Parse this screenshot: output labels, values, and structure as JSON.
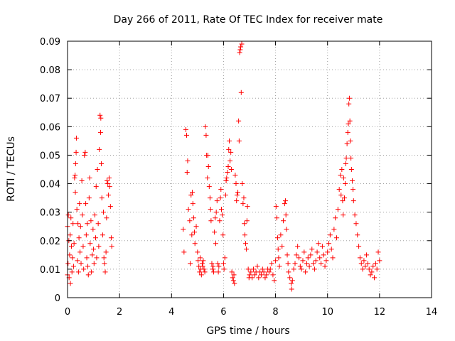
{
  "chart_data": {
    "type": "scatter",
    "title": "Day 266 of 2011, Rate Of TEC Index for receiver mate",
    "xlabel": "GPS time / hours",
    "ylabel": "ROTI / TECUs",
    "xlim": [
      0,
      14
    ],
    "ylim": [
      0,
      0.09
    ],
    "x_ticks": [
      0,
      2,
      4,
      6,
      8,
      10,
      12,
      14
    ],
    "y_ticks": [
      0,
      0.01,
      0.02,
      0.03,
      0.04,
      0.05,
      0.06,
      0.07,
      0.08,
      0.09
    ],
    "x_tick_labels": [
      "0",
      "2",
      "4",
      "6",
      "8",
      "10",
      "12",
      "14"
    ],
    "y_tick_labels": [
      "0",
      "0.01",
      "0.02",
      "0.03",
      "0.04",
      "0.05",
      "0.06",
      "0.07",
      "0.08",
      "0.09"
    ],
    "grid": true,
    "marker": "+",
    "marker_color": "#ff0000",
    "series": [
      {
        "name": "ROTI",
        "points": [
          [
            0.0,
            0.008
          ],
          [
            0.0,
            0.025
          ],
          [
            0.02,
            0.012
          ],
          [
            0.03,
            0.029
          ],
          [
            0.05,
            0.02
          ],
          [
            0.06,
            0.007
          ],
          [
            0.08,
            0.015
          ],
          [
            0.1,
            0.022
          ],
          [
            0.11,
            0.005
          ],
          [
            0.13,
            0.028
          ],
          [
            0.15,
            0.018
          ],
          [
            0.17,
            0.009
          ],
          [
            0.19,
            0.014
          ],
          [
            0.21,
            0.026
          ],
          [
            0.23,
            0.011
          ],
          [
            0.25,
            0.019
          ],
          [
            0.27,
            0.042
          ],
          [
            0.29,
            0.043
          ],
          [
            0.3,
            0.037
          ],
          [
            0.31,
            0.047
          ],
          [
            0.33,
            0.051
          ],
          [
            0.34,
            0.056
          ],
          [
            0.36,
            0.031
          ],
          [
            0.38,
            0.013
          ],
          [
            0.4,
            0.026
          ],
          [
            0.42,
            0.009
          ],
          [
            0.44,
            0.021
          ],
          [
            0.46,
            0.033
          ],
          [
            0.48,
            0.016
          ],
          [
            0.5,
            0.025
          ],
          [
            0.52,
            0.012
          ],
          [
            0.55,
            0.041
          ],
          [
            0.57,
            0.029
          ],
          [
            0.6,
            0.018
          ],
          [
            0.62,
            0.01
          ],
          [
            0.65,
            0.05
          ],
          [
            0.68,
            0.051
          ],
          [
            0.7,
            0.033
          ],
          [
            0.72,
            0.022
          ],
          [
            0.74,
            0.014
          ],
          [
            0.76,
            0.026
          ],
          [
            0.78,
            0.011
          ],
          [
            0.8,
            0.008
          ],
          [
            0.83,
            0.035
          ],
          [
            0.85,
            0.042
          ],
          [
            0.87,
            0.019
          ],
          [
            0.9,
            0.027
          ],
          [
            0.92,
            0.009
          ],
          [
            0.95,
            0.015
          ],
          [
            0.98,
            0.024
          ],
          [
            1.0,
            0.017
          ],
          [
            1.02,
            0.012
          ],
          [
            1.05,
            0.029
          ],
          [
            1.08,
            0.021
          ],
          [
            1.1,
            0.039
          ],
          [
            1.12,
            0.014
          ],
          [
            1.15,
            0.045
          ],
          [
            1.18,
            0.026
          ],
          [
            1.2,
            0.018
          ],
          [
            1.22,
            0.052
          ],
          [
            1.25,
            0.064
          ],
          [
            1.27,
            0.058
          ],
          [
            1.28,
            0.063
          ],
          [
            1.3,
            0.047
          ],
          [
            1.32,
            0.035
          ],
          [
            1.35,
            0.022
          ],
          [
            1.38,
            0.03
          ],
          [
            1.4,
            0.014
          ],
          [
            1.42,
            0.012
          ],
          [
            1.45,
            0.009
          ],
          [
            1.48,
            0.016
          ],
          [
            1.5,
            0.028
          ],
          [
            1.52,
            0.041
          ],
          [
            1.55,
            0.04
          ],
          [
            1.57,
            0.036
          ],
          [
            1.6,
            0.042
          ],
          [
            1.62,
            0.039
          ],
          [
            1.65,
            0.032
          ],
          [
            1.68,
            0.021
          ],
          [
            1.7,
            0.018
          ],
          [
            4.45,
            0.024
          ],
          [
            4.48,
            0.016
          ],
          [
            4.55,
            0.059
          ],
          [
            4.58,
            0.057
          ],
          [
            4.6,
            0.044
          ],
          [
            4.62,
            0.048
          ],
          [
            4.65,
            0.031
          ],
          [
            4.7,
            0.027
          ],
          [
            4.72,
            0.012
          ],
          [
            4.75,
            0.036
          ],
          [
            4.78,
            0.022
          ],
          [
            4.8,
            0.037
          ],
          [
            4.82,
            0.033
          ],
          [
            4.85,
            0.028
          ],
          [
            4.88,
            0.023
          ],
          [
            4.9,
            0.019
          ],
          [
            4.95,
            0.025
          ],
          [
            5.0,
            0.016
          ],
          [
            5.02,
            0.013
          ],
          [
            5.05,
            0.011
          ],
          [
            5.08,
            0.009
          ],
          [
            5.1,
            0.014
          ],
          [
            5.12,
            0.01
          ],
          [
            5.15,
            0.008
          ],
          [
            5.18,
            0.012
          ],
          [
            5.2,
            0.011
          ],
          [
            5.22,
            0.013
          ],
          [
            5.25,
            0.01
          ],
          [
            5.28,
            0.009
          ],
          [
            5.3,
            0.06
          ],
          [
            5.33,
            0.057
          ],
          [
            5.35,
            0.05
          ],
          [
            5.38,
            0.042
          ],
          [
            5.4,
            0.05
          ],
          [
            5.42,
            0.046
          ],
          [
            5.45,
            0.039
          ],
          [
            5.48,
            0.035
          ],
          [
            5.5,
            0.031
          ],
          [
            5.52,
            0.027
          ],
          [
            5.55,
            0.012
          ],
          [
            5.58,
            0.01
          ],
          [
            5.6,
            0.011
          ],
          [
            5.62,
            0.009
          ],
          [
            5.65,
            0.023
          ],
          [
            5.68,
            0.028
          ],
          [
            5.7,
            0.019
          ],
          [
            5.72,
            0.03
          ],
          [
            5.75,
            0.034
          ],
          [
            5.78,
            0.012
          ],
          [
            5.8,
            0.009
          ],
          [
            5.82,
            0.011
          ],
          [
            5.85,
            0.027
          ],
          [
            5.88,
            0.035
          ],
          [
            5.9,
            0.038
          ],
          [
            5.92,
            0.031
          ],
          [
            5.95,
            0.029
          ],
          [
            5.98,
            0.022
          ],
          [
            6.0,
            0.012
          ],
          [
            6.02,
            0.01
          ],
          [
            6.05,
            0.014
          ],
          [
            6.08,
            0.036
          ],
          [
            6.1,
            0.041
          ],
          [
            6.12,
            0.042
          ],
          [
            6.15,
            0.044
          ],
          [
            6.18,
            0.046
          ],
          [
            6.2,
            0.052
          ],
          [
            6.22,
            0.055
          ],
          [
            6.25,
            0.048
          ],
          [
            6.28,
            0.051
          ],
          [
            6.3,
            0.045
          ],
          [
            6.32,
            0.009
          ],
          [
            6.35,
            0.007
          ],
          [
            6.38,
            0.006
          ],
          [
            6.4,
            0.008
          ],
          [
            6.42,
            0.005
          ],
          [
            6.45,
            0.043
          ],
          [
            6.48,
            0.04
          ],
          [
            6.5,
            0.034
          ],
          [
            6.52,
            0.036
          ],
          [
            6.55,
            0.037
          ],
          [
            6.58,
            0.062
          ],
          [
            6.6,
            0.055
          ],
          [
            6.62,
            0.086
          ],
          [
            6.64,
            0.087
          ],
          [
            6.66,
            0.088
          ],
          [
            6.68,
            0.072
          ],
          [
            6.7,
            0.089
          ],
          [
            6.72,
            0.04
          ],
          [
            6.75,
            0.033
          ],
          [
            6.78,
            0.035
          ],
          [
            6.8,
            0.026
          ],
          [
            6.82,
            0.022
          ],
          [
            6.85,
            0.019
          ],
          [
            6.88,
            0.017
          ],
          [
            6.9,
            0.027
          ],
          [
            6.92,
            0.032
          ],
          [
            6.95,
            0.01
          ],
          [
            6.98,
            0.007
          ],
          [
            7.0,
            0.008
          ],
          [
            7.05,
            0.009
          ],
          [
            7.1,
            0.007
          ],
          [
            7.15,
            0.01
          ],
          [
            7.2,
            0.008
          ],
          [
            7.25,
            0.009
          ],
          [
            7.3,
            0.011
          ],
          [
            7.35,
            0.007
          ],
          [
            7.4,
            0.009
          ],
          [
            7.45,
            0.008
          ],
          [
            7.5,
            0.01
          ],
          [
            7.55,
            0.009
          ],
          [
            7.6,
            0.007
          ],
          [
            7.65,
            0.008
          ],
          [
            7.7,
            0.01
          ],
          [
            7.75,
            0.009
          ],
          [
            7.8,
            0.01
          ],
          [
            7.85,
            0.012
          ],
          [
            7.9,
            0.008
          ],
          [
            7.95,
            0.006
          ],
          [
            8.0,
            0.013
          ],
          [
            8.02,
            0.032
          ],
          [
            8.05,
            0.028
          ],
          [
            8.08,
            0.021
          ],
          [
            8.1,
            0.017
          ],
          [
            8.12,
            0.014
          ],
          [
            8.15,
            0.011
          ],
          [
            8.2,
            0.022
          ],
          [
            8.25,
            0.018
          ],
          [
            8.3,
            0.027
          ],
          [
            8.35,
            0.033
          ],
          [
            8.38,
            0.034
          ],
          [
            8.4,
            0.029
          ],
          [
            8.42,
            0.024
          ],
          [
            8.45,
            0.015
          ],
          [
            8.48,
            0.012
          ],
          [
            8.5,
            0.009
          ],
          [
            8.55,
            0.007
          ],
          [
            8.6,
            0.005
          ],
          [
            8.62,
            0.003
          ],
          [
            8.65,
            0.006
          ],
          [
            8.7,
            0.01
          ],
          [
            8.75,
            0.012
          ],
          [
            8.8,
            0.015
          ],
          [
            8.85,
            0.018
          ],
          [
            8.9,
            0.014
          ],
          [
            8.95,
            0.011
          ],
          [
            9.0,
            0.01
          ],
          [
            9.05,
            0.013
          ],
          [
            9.1,
            0.016
          ],
          [
            9.15,
            0.009
          ],
          [
            9.2,
            0.012
          ],
          [
            9.25,
            0.014
          ],
          [
            9.3,
            0.011
          ],
          [
            9.35,
            0.015
          ],
          [
            9.4,
            0.017
          ],
          [
            9.45,
            0.012
          ],
          [
            9.5,
            0.01
          ],
          [
            9.55,
            0.013
          ],
          [
            9.6,
            0.016
          ],
          [
            9.65,
            0.019
          ],
          [
            9.7,
            0.014
          ],
          [
            9.75,
            0.012
          ],
          [
            9.8,
            0.018
          ],
          [
            9.85,
            0.015
          ],
          [
            9.9,
            0.011
          ],
          [
            9.95,
            0.013
          ],
          [
            10.0,
            0.016
          ],
          [
            10.05,
            0.019
          ],
          [
            10.1,
            0.022
          ],
          [
            10.15,
            0.017
          ],
          [
            10.2,
            0.014
          ],
          [
            10.25,
            0.024
          ],
          [
            10.3,
            0.028
          ],
          [
            10.35,
            0.021
          ],
          [
            10.4,
            0.031
          ],
          [
            10.45,
            0.038
          ],
          [
            10.5,
            0.043
          ],
          [
            10.52,
            0.036
          ],
          [
            10.55,
            0.045
          ],
          [
            10.58,
            0.034
          ],
          [
            10.6,
            0.029
          ],
          [
            10.62,
            0.042
          ],
          [
            10.65,
            0.035
          ],
          [
            10.68,
            0.04
          ],
          [
            10.7,
            0.047
          ],
          [
            10.72,
            0.049
          ],
          [
            10.75,
            0.054
          ],
          [
            10.78,
            0.058
          ],
          [
            10.8,
            0.061
          ],
          [
            10.82,
            0.068
          ],
          [
            10.84,
            0.07
          ],
          [
            10.86,
            0.062
          ],
          [
            10.88,
            0.055
          ],
          [
            10.9,
            0.049
          ],
          [
            10.92,
            0.045
          ],
          [
            10.95,
            0.041
          ],
          [
            10.98,
            0.038
          ],
          [
            11.0,
            0.034
          ],
          [
            11.05,
            0.029
          ],
          [
            11.1,
            0.026
          ],
          [
            11.15,
            0.022
          ],
          [
            11.2,
            0.018
          ],
          [
            11.25,
            0.014
          ],
          [
            11.3,
            0.012
          ],
          [
            11.35,
            0.01
          ],
          [
            11.4,
            0.013
          ],
          [
            11.45,
            0.011
          ],
          [
            11.5,
            0.015
          ],
          [
            11.55,
            0.012
          ],
          [
            11.6,
            0.01
          ],
          [
            11.65,
            0.008
          ],
          [
            11.7,
            0.009
          ],
          [
            11.75,
            0.011
          ],
          [
            11.8,
            0.007
          ],
          [
            11.85,
            0.012
          ],
          [
            11.9,
            0.01
          ],
          [
            11.95,
            0.016
          ],
          [
            12.0,
            0.013
          ]
        ]
      }
    ]
  }
}
